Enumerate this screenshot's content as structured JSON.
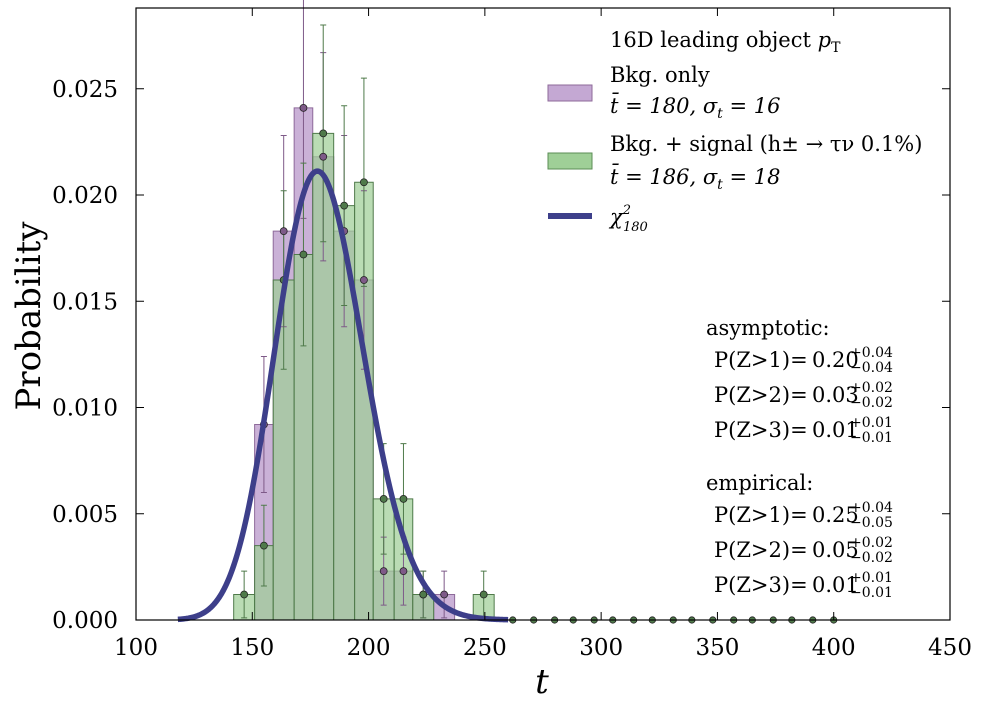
{
  "chart_data": {
    "type": "bar",
    "title": "16D leading object p_T",
    "xlabel": "t",
    "ylabel": "Probability",
    "xlim": [
      100,
      450
    ],
    "ylim": [
      0.0,
      0.0288
    ],
    "xticks": [
      "100",
      "150",
      "200",
      "250",
      "300",
      "350",
      "400",
      "450"
    ],
    "yticks": [
      "0.000",
      "0.005",
      "0.010",
      "0.015",
      "0.020",
      "0.025"
    ],
    "bin_edges": [
      142,
      151,
      159,
      168,
      176,
      185,
      194,
      202,
      211,
      219,
      228,
      237,
      245,
      254,
      262
    ],
    "series": [
      {
        "name": "Bkg. only",
        "stats": "t̄ = 180, σ_t = 16",
        "color": "#c4a8d3",
        "marker_color": "#7e5a88",
        "bin_centers": [
          146.5,
          155,
          163.5,
          172,
          180.5,
          189.5,
          198,
          206.5,
          215,
          223.5,
          232.5,
          241,
          249.5,
          258
        ],
        "values": [
          0.0,
          0.0092,
          0.0183,
          0.0241,
          0.0218,
          0.0183,
          0.016,
          0.0023,
          0.0023,
          0.0012,
          0.0012,
          0.0,
          0.0,
          0.0
        ],
        "errors": [
          0.0,
          0.0032,
          0.0045,
          0.0052,
          0.0049,
          0.0045,
          0.0042,
          0.0016,
          0.0016,
          0.0011,
          0.0011,
          0.0,
          0.0,
          0.0
        ]
      },
      {
        "name": "Bkg. + signal (h± → τν 0.1%)",
        "stats": "t̄ = 186, σ_t = 18",
        "color": "#9fcf97",
        "marker_color": "#4f7a4a",
        "bin_centers": [
          146.5,
          155,
          163.5,
          172,
          180.5,
          189.5,
          198,
          206.5,
          215,
          223.5,
          232.5,
          241,
          249.5,
          258
        ],
        "values": [
          0.0012,
          0.0035,
          0.016,
          0.0172,
          0.0229,
          0.0195,
          0.0206,
          0.0057,
          0.0057,
          0.0012,
          0.0,
          0.0,
          0.0012,
          0.0
        ],
        "errors": [
          0.0011,
          0.0019,
          0.0042,
          0.0043,
          0.0051,
          0.0047,
          0.0049,
          0.0026,
          0.0026,
          0.0011,
          0.0,
          0.0,
          0.0011,
          0.0
        ]
      },
      {
        "name": "χ²₁₈₀",
        "type": "line",
        "color": "#3d3f8a",
        "dof": 180,
        "x_range": [
          118,
          260
        ]
      }
    ],
    "zero_markers_x": [
      262,
      271,
      280,
      288,
      297,
      305,
      314,
      322,
      331,
      339,
      348,
      357,
      365,
      374,
      382,
      391,
      400
    ],
    "legend": "top-right",
    "grid": false
  },
  "annotations": {
    "asymptotic": {
      "heading": "asymptotic:",
      "rows": [
        {
          "label": "P(Z>1)=",
          "value": "0.20",
          "up": "+0.04",
          "down": "−0.04"
        },
        {
          "label": "P(Z>2)=",
          "value": "0.03",
          "up": "+0.02",
          "down": "−0.02"
        },
        {
          "label": "P(Z>3)=",
          "value": "0.01",
          "up": "+0.01",
          "down": "−0.01"
        }
      ]
    },
    "empirical": {
      "heading": "empirical:",
      "rows": [
        {
          "label": "P(Z>1)=",
          "value": "0.25",
          "up": "+0.04",
          "down": "−0.05"
        },
        {
          "label": "P(Z>2)=",
          "value": "0.05",
          "up": "+0.02",
          "down": "−0.02"
        },
        {
          "label": "P(Z>3)=",
          "value": "0.01",
          "up": "+0.01",
          "down": "−0.01"
        }
      ]
    }
  },
  "legend_text": {
    "title_main": "16D leading object ",
    "title_var": "p",
    "title_sub": "T",
    "bkg_label": "Bkg. only",
    "bkg_stats_pre": "t̄ = 180, σ",
    "bkg_stats_sub": "t",
    "bkg_stats_post": " = 16",
    "sig_label": "Bkg. + signal (h± → τν 0.1%)",
    "sig_stats_pre": "t̄ = 186, σ",
    "sig_stats_sub": "t",
    "sig_stats_post": " = 18",
    "chi_main": "χ",
    "chi_sup": "2",
    "chi_sub": "180"
  }
}
